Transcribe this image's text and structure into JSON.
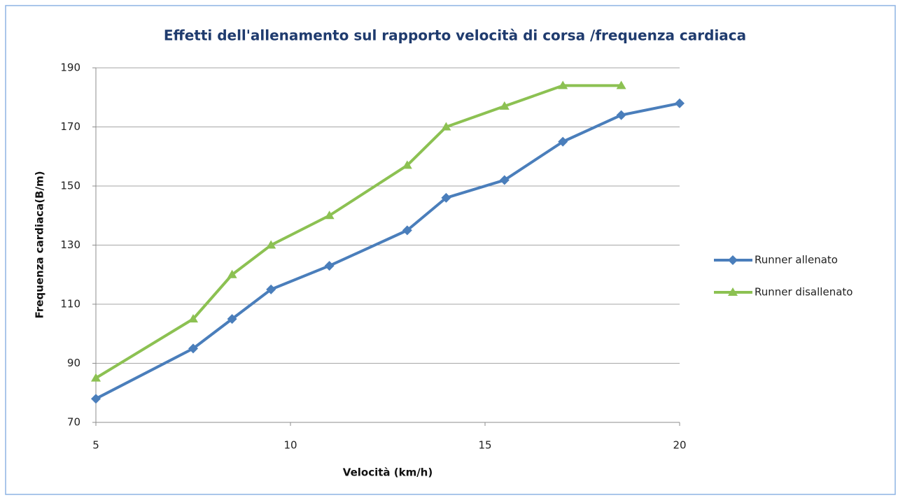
{
  "chart_data": {
    "type": "line",
    "title": "Effetti dell'allenamento sul rapporto velocità di corsa /frequenza cardiaca",
    "x_label": "Velocità (km/h)",
    "y_label": "Frequenza cardiaca(B/m)",
    "xlim": [
      5,
      20
    ],
    "xticks": [
      5,
      10,
      15,
      20
    ],
    "ylim": [
      70,
      190
    ],
    "yticks": [
      70,
      90,
      110,
      130,
      150,
      170,
      190
    ],
    "grid": true,
    "legend": "right",
    "series": [
      {
        "name": "Runner allenato",
        "color": "#4a7ebb",
        "marker": "diamond",
        "x": [
          5,
          7.5,
          8.5,
          9.5,
          11,
          13,
          14,
          15.5,
          17,
          18.5,
          20
        ],
        "values": [
          78,
          95,
          105,
          115,
          123,
          135,
          146,
          152,
          165,
          174,
          178
        ]
      },
      {
        "name": "Runner disallenato",
        "color": "#8cc152",
        "marker": "triangle",
        "x": [
          5,
          7.5,
          8.5,
          9.5,
          11,
          13,
          14,
          15.5,
          17,
          18.5
        ],
        "values": [
          85,
          105,
          120,
          130,
          140,
          157,
          170,
          177,
          184,
          184
        ]
      }
    ]
  }
}
